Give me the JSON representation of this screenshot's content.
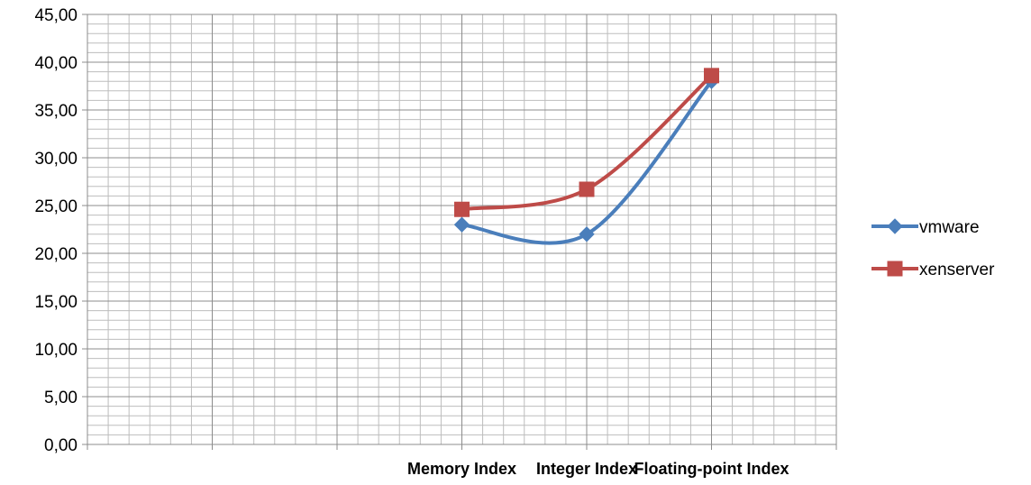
{
  "chart_data": {
    "type": "line",
    "categories": [
      "",
      "",
      "Memory Index",
      "Integer Index",
      "Floating-point Index",
      ""
    ],
    "series": [
      {
        "name": "vmware",
        "color": "#4a7ebb",
        "marker": "diamond",
        "values": [
          null,
          null,
          23.0,
          22.0,
          38.0,
          null
        ]
      },
      {
        "name": "xenserver",
        "color": "#be4b48",
        "marker": "square",
        "values": [
          null,
          null,
          24.6,
          26.7,
          38.6,
          null
        ]
      }
    ],
    "ylim": [
      0,
      45
    ],
    "yticks": [
      "0,00",
      "5,00",
      "10,00",
      "15,00",
      "20,00",
      "25,00",
      "30,00",
      "35,00",
      "40,00",
      "45,00"
    ],
    "grid": true,
    "smooth": true,
    "legend_position": "right",
    "title": "",
    "xlabel": "",
    "ylabel": ""
  }
}
